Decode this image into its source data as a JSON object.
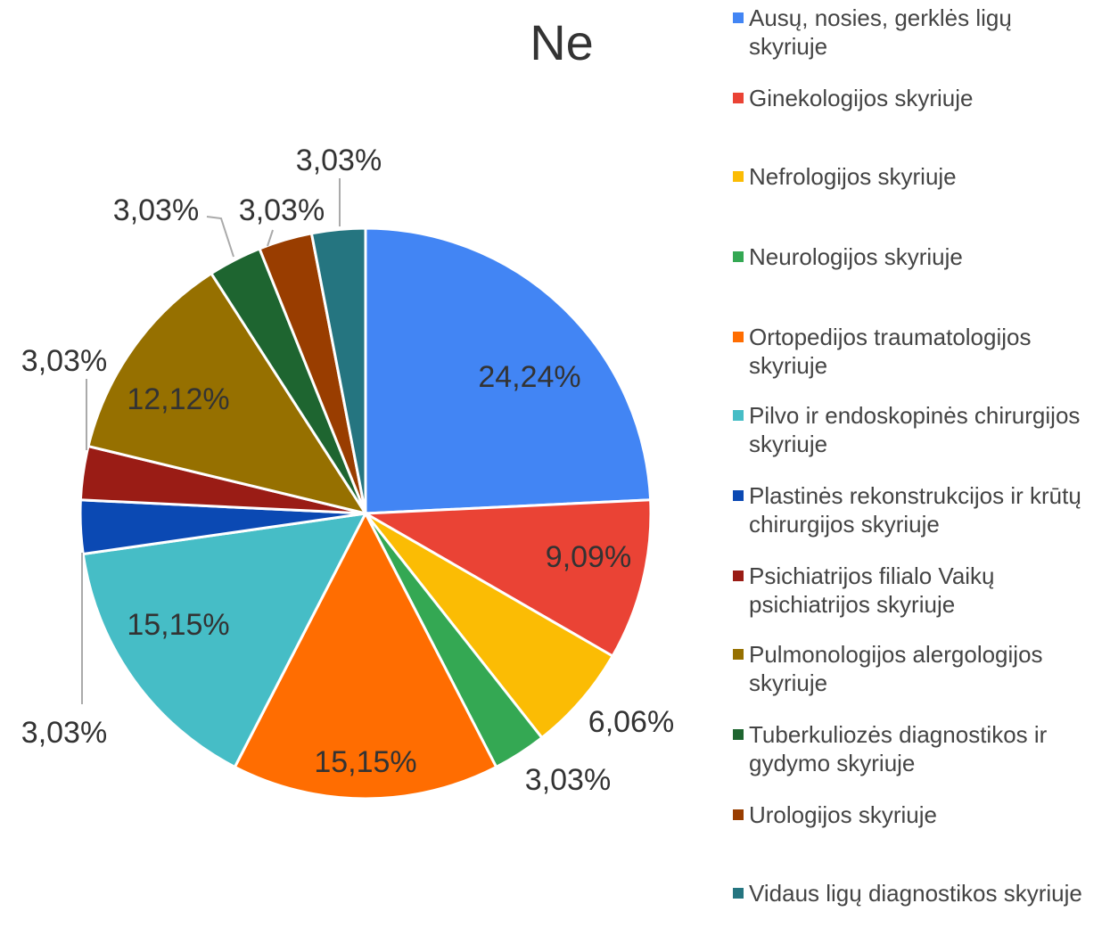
{
  "chart_data": {
    "type": "pie",
    "title": "Ne",
    "categories": [
      "Ausų, nosies, gerklės ligų skyriuje",
      "Ginekologijos skyriuje",
      "Nefrologijos skyriuje",
      "Neurologijos skyriuje",
      "Ortopedijos traumatologijos skyriuje",
      "Pilvo ir endoskopinės chirurgijos skyriuje",
      "Plastinės rekonstrukcijos ir krūtų chirurgijos skyriuje",
      "Psichiatrijos filialo Vaikų psichiatrijos skyriuje",
      "Pulmonologijos alergologijos skyriuje",
      "Tuberkuliozės diagnostikos ir gydymo skyriuje",
      "Urologijos skyriuje",
      "Vidaus ligų diagnostikos skyriuje"
    ],
    "values": [
      24.24,
      9.09,
      6.06,
      3.03,
      15.15,
      15.15,
      3.03,
      3.03,
      12.12,
      3.03,
      3.03,
      3.03
    ],
    "value_labels": [
      "24,24%",
      "9,09%",
      "6,06%",
      "3,03%",
      "15,15%",
      "15,15%",
      "3,03%",
      "3,03%",
      "12,12%",
      "3,03%",
      "3,03%",
      "3,03%"
    ],
    "colors": [
      "#4285f4",
      "#ea4335",
      "#fbbc04",
      "#34a853",
      "#ff6d01",
      "#46bdc6",
      "#0b49b3",
      "#9a1c15",
      "#967000",
      "#1e6530",
      "#993d00",
      "#257580"
    ],
    "legend": "right"
  }
}
